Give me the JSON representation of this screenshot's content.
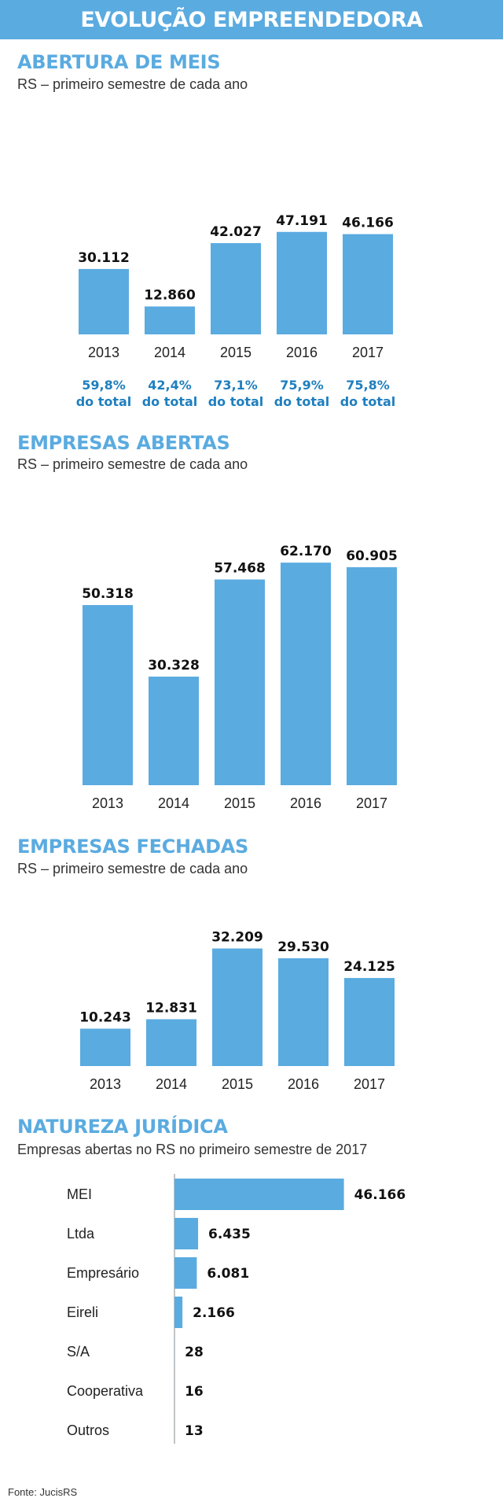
{
  "header": {
    "title": "EVOLUÇÃO EMPREENDEDORA"
  },
  "colors": {
    "bar": "#5aabe0",
    "header": "#5aabe0",
    "pct_text": "#1f7fbf"
  },
  "chart_data": [
    {
      "type": "bar",
      "title": "ABERTURA DE MEIS",
      "subtitle": "RS – primeiro semestre de cada ano",
      "categories": [
        "2013",
        "2014",
        "2015",
        "2016",
        "2017"
      ],
      "values": [
        30112,
        12860,
        42027,
        47191,
        46166
      ],
      "value_labels": [
        "30.112",
        "12.860",
        "42.027",
        "47.191",
        "46.166"
      ],
      "share_labels": [
        [
          "59,8%",
          "do total"
        ],
        [
          "42,4%",
          "do total"
        ],
        [
          "73,1%",
          "do total"
        ],
        [
          "75,9%",
          "do total"
        ],
        [
          "75,8%",
          "do total"
        ]
      ]
    },
    {
      "type": "bar",
      "title": "EMPRESAS ABERTAS",
      "subtitle": "RS – primeiro semestre de cada ano",
      "categories": [
        "2013",
        "2014",
        "2015",
        "2016",
        "2017"
      ],
      "values": [
        50318,
        30328,
        57468,
        62170,
        60905
      ],
      "value_labels": [
        "50.318",
        "30.328",
        "57.468",
        "62.170",
        "60.905"
      ]
    },
    {
      "type": "bar",
      "title": "EMPRESAS FECHADAS",
      "subtitle": "RS – primeiro semestre de cada ano",
      "categories": [
        "2013",
        "2014",
        "2015",
        "2016",
        "2017"
      ],
      "values": [
        10243,
        12831,
        32209,
        29530,
        24125
      ],
      "value_labels": [
        "10.243",
        "12.831",
        "32.209",
        "29.530",
        "24.125"
      ]
    },
    {
      "type": "bar",
      "orientation": "horizontal",
      "title": "NATUREZA JURÍDICA",
      "subtitle": "Empresas abertas no RS no primeiro semestre de 2017",
      "categories": [
        "MEI",
        "Ltda",
        "Empresário",
        "Eireli",
        "S/A",
        "Cooperativa",
        "Outros"
      ],
      "values": [
        46166,
        6435,
        6081,
        2166,
        28,
        16,
        13
      ],
      "value_labels": [
        "46.166",
        "6.435",
        "6.081",
        "2.166",
        "28",
        "16",
        "13"
      ]
    }
  ],
  "footer": {
    "source": "Fonte: JucisRS"
  }
}
